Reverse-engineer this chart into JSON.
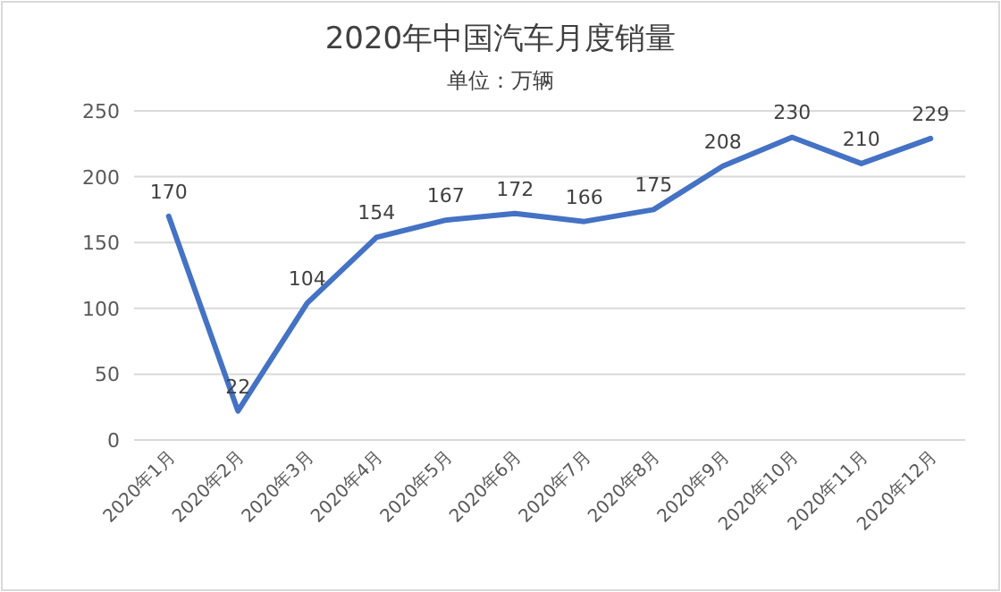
{
  "chart_data": {
    "type": "line",
    "title": "2020年中国汽车月度销量",
    "subtitle": "单位：万辆",
    "categories": [
      "2020年1月",
      "2020年2月",
      "2020年3月",
      "2020年4月",
      "2020年5月",
      "2020年6月",
      "2020年7月",
      "2020年8月",
      "2020年9月",
      "2020年10月",
      "2020年11月",
      "2020年12月"
    ],
    "series": [
      {
        "color": "#4472c4",
        "values": [
          170,
          22,
          104,
          154,
          167,
          172,
          166,
          175,
          208,
          230,
          210,
          229
        ]
      }
    ],
    "ylim": [
      0,
      250
    ],
    "yticks": [
      0,
      50,
      100,
      150,
      200,
      250
    ],
    "grid": "y",
    "data_labels": true
  }
}
